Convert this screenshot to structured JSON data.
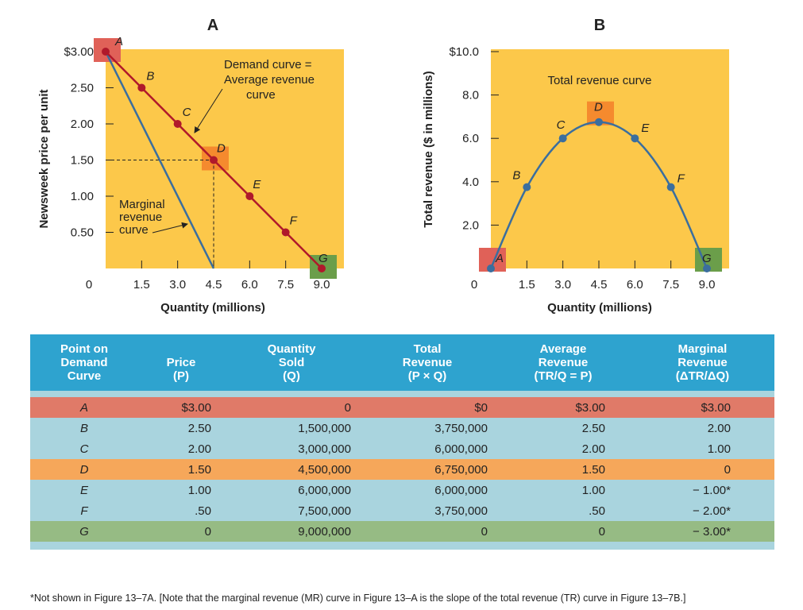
{
  "chart_data": [
    {
      "type": "line",
      "title": "A",
      "xlabel": "Quantity (millions)",
      "ylabel": "Newsweek price per unit",
      "xlim": [
        0,
        9.0
      ],
      "ylim": [
        0,
        3.0
      ],
      "x_ticks": [
        "0",
        "1.5",
        "3.0",
        "4.5",
        "6.0",
        "7.5",
        "9.0"
      ],
      "y_ticks": [
        "$3.00",
        "2.50",
        "2.00",
        "1.50",
        "1.00",
        "0.50",
        "0"
      ],
      "background_color": "#fcc84a",
      "series": [
        {
          "name": "Demand curve = Average revenue curve",
          "color": "#b0192b",
          "points": [
            {
              "label": "A",
              "x": 0,
              "y": 3.0
            },
            {
              "label": "B",
              "x": 1.5,
              "y": 2.5
            },
            {
              "label": "C",
              "x": 3.0,
              "y": 2.0
            },
            {
              "label": "D",
              "x": 4.5,
              "y": 1.5
            },
            {
              "label": "E",
              "x": 6.0,
              "y": 1.0
            },
            {
              "label": "F",
              "x": 7.5,
              "y": 0.5
            },
            {
              "label": "G",
              "x": 9.0,
              "y": 0
            }
          ]
        },
        {
          "name": "Marginal revenue curve",
          "color": "#3b6e9e",
          "points": [
            {
              "x": 0,
              "y": 3.0
            },
            {
              "x": 4.5,
              "y": 0
            }
          ]
        }
      ],
      "highlights": [
        {
          "label": "A",
          "color": "#e06158"
        },
        {
          "label": "D",
          "color": "#f58a2e"
        },
        {
          "label": "G",
          "color": "#6b9e4a"
        }
      ],
      "annotations": {
        "demand": [
          "Demand curve =",
          "Average revenue",
          "curve"
        ],
        "marginal": [
          "Marginal",
          "revenue",
          "curve"
        ]
      }
    },
    {
      "type": "line",
      "title": "B",
      "xlabel": "Quantity (millions)",
      "ylabel": "Total revenue ($ in millions)",
      "xlim": [
        0,
        9.0
      ],
      "ylim": [
        0,
        10.0
      ],
      "x_ticks": [
        "0",
        "1.5",
        "3.0",
        "4.5",
        "6.0",
        "7.5",
        "9.0"
      ],
      "y_ticks": [
        "$10.0",
        "8.0",
        "6.0",
        "4.0",
        "2.0"
      ],
      "background_color": "#fcc84a",
      "series": [
        {
          "name": "Total revenue curve",
          "color": "#3b6e9e",
          "points": [
            {
              "label": "A",
              "x": 0,
              "y": 0
            },
            {
              "label": "B",
              "x": 1.5,
              "y": 3.75
            },
            {
              "label": "C",
              "x": 3.0,
              "y": 6.0
            },
            {
              "label": "D",
              "x": 4.5,
              "y": 6.75
            },
            {
              "label": "E",
              "x": 6.0,
              "y": 6.0
            },
            {
              "label": "F",
              "x": 7.5,
              "y": 3.75
            },
            {
              "label": "G",
              "x": 9.0,
              "y": 0
            }
          ]
        }
      ],
      "highlights": [
        {
          "label": "A",
          "color": "#e06158"
        },
        {
          "label": "D",
          "color": "#f58a2e"
        },
        {
          "label": "G",
          "color": "#6b9e4a"
        }
      ]
    },
    {
      "type": "table",
      "headers": [
        [
          "Point on",
          "Demand",
          "Curve"
        ],
        [
          "Price",
          "(P)"
        ],
        [
          "Quantity",
          "Sold",
          "(Q)"
        ],
        [
          "Total",
          "Revenue",
          "(P × Q)"
        ],
        [
          "Average",
          "Revenue",
          "(TR/Q = P)"
        ],
        [
          "Marginal",
          "Revenue",
          "(ΔTR/ΔQ)"
        ]
      ],
      "rows": [
        {
          "style": "A",
          "cells": [
            "A",
            "$3.00",
            "0",
            "$0",
            "$3.00",
            "$3.00"
          ]
        },
        {
          "style": "plain",
          "cells": [
            "B",
            "2.50",
            "1,500,000",
            "3,750,000",
            "2.50",
            "2.00"
          ]
        },
        {
          "style": "plain",
          "cells": [
            "C",
            "2.00",
            "3,000,000",
            "6,000,000",
            "2.00",
            "1.00"
          ]
        },
        {
          "style": "D",
          "cells": [
            "D",
            "1.50",
            "4,500,000",
            "6,750,000",
            "1.50",
            "0"
          ]
        },
        {
          "style": "plain",
          "cells": [
            "E",
            "1.00",
            "6,000,000",
            "6,000,000",
            "1.00",
            "− 1.00*"
          ]
        },
        {
          "style": "plain",
          "cells": [
            "F",
            ".50",
            "7,500,000",
            "3,750,000",
            ".50",
            "− 2.00*"
          ]
        },
        {
          "style": "G",
          "cells": [
            "G",
            "0",
            "9,000,000",
            "0",
            "0",
            "− 3.00*"
          ]
        }
      ]
    }
  ],
  "footnote": "*Not shown in Figure 13–7A.  [Note that the marginal revenue (MR) curve in Figure 13–A is the slope of the total revenue (TR) curve in Figure 13–7B.]"
}
